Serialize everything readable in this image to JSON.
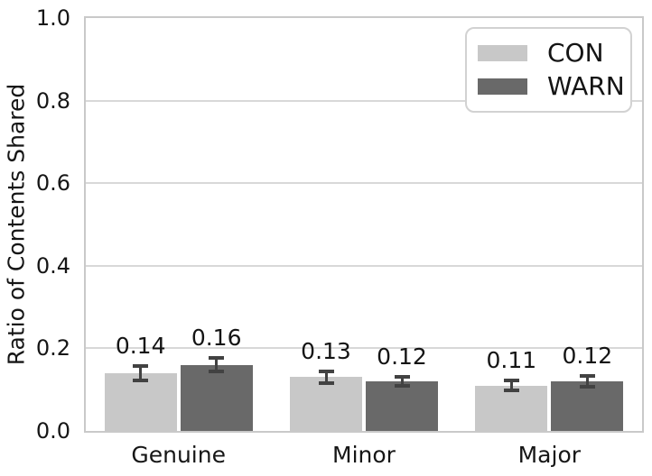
{
  "chart_data": {
    "type": "bar",
    "title": "",
    "xlabel": "",
    "ylabel": "Ratio of Contents Shared",
    "ylim": [
      0,
      1
    ],
    "yticks": [
      "0.0",
      "0.2",
      "0.4",
      "0.6",
      "0.8",
      "1.0"
    ],
    "grid": true,
    "legend_position": "upper right",
    "categories": [
      "Genuine",
      "Minor",
      "Major"
    ],
    "series": [
      {
        "name": "CON",
        "color": "#c8c8c8",
        "values": [
          0.14,
          0.13,
          0.11
        ],
        "errors": [
          0.021,
          0.019,
          0.016
        ],
        "labels": [
          "0.14",
          "0.13",
          "0.11"
        ]
      },
      {
        "name": "WARN",
        "color": "#696969",
        "values": [
          0.16,
          0.12,
          0.12
        ],
        "errors": [
          0.021,
          0.016,
          0.018
        ],
        "labels": [
          "0.16",
          "0.12",
          "0.12"
        ]
      }
    ],
    "colors": {
      "error_bar": "#424242",
      "grid_line": "#d8d8d8",
      "spine": "#c9c9c9",
      "text": "#161616",
      "background": "#ffffff"
    }
  }
}
